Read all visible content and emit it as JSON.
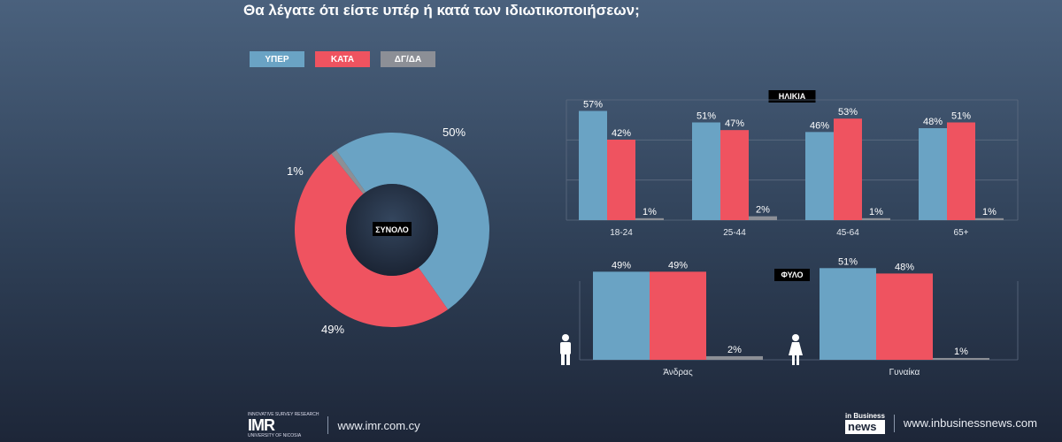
{
  "title": "Θα λέγατε ότι είστε υπέρ ή κατά των ιδιωτικοποιήσεων;",
  "colors": {
    "yes": "#6aa3c4",
    "no": "#ef5360",
    "dk": "#8c8f96"
  },
  "legend": [
    {
      "label": "ΥΠΕΡ",
      "color": "#6aa3c4"
    },
    {
      "label": "ΚΑΤΑ",
      "color": "#ef5360"
    },
    {
      "label": "ΔΓ/ΔΑ",
      "color": "#8c8f96"
    }
  ],
  "chart_data": [
    {
      "type": "pie",
      "center_label": "ΣΥΝΟΛΟ",
      "slices": [
        {
          "name": "ΥΠΕΡ",
          "value": 50,
          "label": "50%"
        },
        {
          "name": "ΚΑΤΑ",
          "value": 49,
          "label": "49%"
        },
        {
          "name": "ΔΓ/ΔΑ",
          "value": 1,
          "label": "1%"
        }
      ]
    },
    {
      "type": "bar",
      "title": "ΗΛΙΚΙΑ",
      "categories": [
        "18-24",
        "25-44",
        "45-64",
        "65+"
      ],
      "series": [
        {
          "name": "ΥΠΕΡ",
          "values": [
            57,
            51,
            46,
            48
          ]
        },
        {
          "name": "ΚΑΤΑ",
          "values": [
            42,
            47,
            53,
            51
          ]
        },
        {
          "name": "ΔΓ/ΔΑ",
          "values": [
            1,
            2,
            1,
            1
          ]
        }
      ],
      "ylim": [
        0,
        60
      ]
    },
    {
      "type": "bar",
      "title": "ΦΥΛΟ",
      "categories": [
        "Άνδρας",
        "Γυναίκα"
      ],
      "series": [
        {
          "name": "ΥΠΕΡ",
          "values": [
            49,
            51
          ]
        },
        {
          "name": "ΚΑΤΑ",
          "values": [
            49,
            48
          ]
        },
        {
          "name": "ΔΓ/ΔΑ",
          "values": [
            2,
            1
          ]
        }
      ],
      "ylim": [
        0,
        60
      ]
    }
  ],
  "footer": {
    "imr_logo": "IMR",
    "imr_sub_top": "INNOVATIVE SURVEY RESEARCH",
    "imr_sub_bottom": "UNIVERSITY OF NICOSIA",
    "imr_url": "www.imr.com.cy",
    "inb_logo_top": "in Business",
    "inb_logo_bottom": "news",
    "inb_url": "www.inbusinessnews.com"
  }
}
